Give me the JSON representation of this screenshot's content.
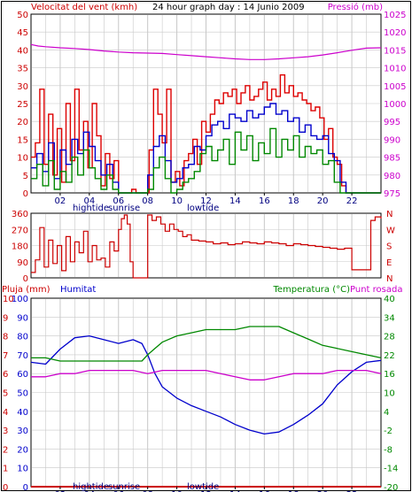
{
  "page": {
    "title": "24 hour graph day : 14 Junio 2009",
    "background": "#ffffff",
    "border_color": "#000000",
    "gridline_color": "#c8c8c8"
  },
  "chart_data": [
    {
      "type": "line",
      "id": "wind-pressure",
      "title": "24 hour graph day : 14 Junio 2009",
      "ylabel_left": "Velocitat del vent (kmh)",
      "ylabel_right": "Pressió (mb)",
      "ylim_left": [
        0,
        50
      ],
      "ylim_right": [
        975,
        1025
      ],
      "yticks_left": [
        "0",
        "5",
        "10",
        "15",
        "20",
        "25",
        "30",
        "35",
        "40",
        "45",
        "50"
      ],
      "yticks_right": [
        "975",
        "980",
        "985",
        "990",
        "995",
        "1000",
        "1005",
        "1010",
        "1015",
        "1020",
        "1025"
      ],
      "xlim": [
        0,
        24
      ],
      "xticks": [
        "02",
        "04",
        "06",
        "08",
        "10",
        "12",
        "14",
        "16",
        "18",
        "20",
        "22"
      ],
      "annotations": [
        "hightide",
        "sunrise",
        "lowtide"
      ],
      "colors": {
        "left_axis": "#cc0000",
        "right_axis": "#cc00cc",
        "gust": "#dd0000",
        "average": "#0000cc",
        "speed": "#008800",
        "pressure": "#cc00cc"
      },
      "series": [
        {
          "axis": "right",
          "color": "#cc00cc",
          "x": [
            0,
            0.5,
            1,
            2,
            3,
            4,
            5,
            6,
            7,
            8,
            9,
            10,
            11,
            12,
            13,
            14,
            15,
            16,
            17,
            18,
            19,
            20,
            21,
            22,
            23,
            24
          ],
          "values": [
            1016.5,
            1016.1,
            1015.9,
            1015.6,
            1015.4,
            1015.1,
            1014.7,
            1014.4,
            1014.2,
            1014.1,
            1014.0,
            1013.7,
            1013.4,
            1013.1,
            1012.8,
            1012.5,
            1012.3,
            1012.3,
            1012.5,
            1012.8,
            1013.1,
            1013.6,
            1014.2,
            1014.9,
            1015.5,
            1015.6
          ]
        },
        {
          "axis": "left",
          "color": "#dd0000",
          "x": [
            0,
            0.3,
            0.6,
            0.9,
            1.2,
            1.5,
            1.8,
            2.1,
            2.4,
            2.7,
            3.0,
            3.3,
            3.6,
            3.9,
            4.2,
            4.5,
            4.8,
            5.1,
            5.4,
            5.7,
            6.0,
            6.3,
            6.6,
            6.9,
            7.2,
            7.5,
            7.8,
            8.1,
            8.4,
            8.7,
            9.0,
            9.3,
            9.6,
            9.9,
            10.2,
            10.5,
            10.8,
            11.1,
            11.4,
            11.7,
            12.0,
            12.3,
            12.6,
            12.9,
            13.2,
            13.5,
            13.8,
            14.1,
            14.4,
            14.7,
            15.0,
            15.3,
            15.6,
            15.9,
            16.2,
            16.5,
            16.8,
            17.1,
            17.4,
            17.7,
            18.0,
            18.3,
            18.6,
            18.9,
            19.2,
            19.5,
            19.8,
            20.1,
            20.4,
            20.7,
            21.0,
            21.3,
            21.6,
            22.0,
            23.0,
            24.0
          ],
          "values": [
            10,
            14,
            29,
            8,
            22,
            5,
            18,
            3,
            25,
            9,
            29,
            12,
            20,
            7,
            25,
            16,
            2,
            11,
            4,
            9,
            0,
            0,
            0,
            1,
            0,
            0,
            0,
            12,
            29,
            22,
            14,
            29,
            3,
            6,
            2,
            9,
            11,
            15,
            8,
            20,
            17,
            22,
            26,
            25,
            28,
            27,
            29,
            25,
            28,
            30,
            26,
            27,
            29,
            31,
            26,
            29,
            27,
            33,
            28,
            30,
            27,
            28,
            26,
            25,
            23,
            24,
            21,
            15,
            18,
            10,
            8,
            2,
            0,
            0,
            0,
            0
          ]
        },
        {
          "axis": "left",
          "color": "#0000cc",
          "x": [
            0,
            0.4,
            0.8,
            1.2,
            1.6,
            2.0,
            2.4,
            2.8,
            3.2,
            3.6,
            4.0,
            4.4,
            4.8,
            5.2,
            5.6,
            6.0,
            6.4,
            6.8,
            7.2,
            7.6,
            8.0,
            8.4,
            8.8,
            9.2,
            9.6,
            10.0,
            10.4,
            10.8,
            11.2,
            11.6,
            12.0,
            12.4,
            12.8,
            13.2,
            13.6,
            14.0,
            14.4,
            14.8,
            15.2,
            15.6,
            16.0,
            16.4,
            16.8,
            17.2,
            17.6,
            18.0,
            18.4,
            18.8,
            19.2,
            19.6,
            20.0,
            20.4,
            20.8,
            21.2,
            21.6,
            22.0,
            23.0,
            24.0
          ],
          "values": [
            7,
            11,
            6,
            14,
            4,
            12,
            8,
            15,
            11,
            17,
            13,
            9,
            5,
            8,
            3,
            0,
            0,
            0,
            0,
            0,
            5,
            13,
            16,
            9,
            3,
            4,
            7,
            8,
            13,
            12,
            16,
            19,
            20,
            18,
            22,
            21,
            20,
            23,
            21,
            22,
            24,
            25,
            22,
            23,
            20,
            21,
            17,
            19,
            16,
            15,
            16,
            11,
            9,
            3,
            0,
            0,
            0,
            0
          ]
        },
        {
          "axis": "left",
          "color": "#008800",
          "x": [
            0,
            0.4,
            0.8,
            1.2,
            1.6,
            2.0,
            2.4,
            2.8,
            3.2,
            3.6,
            4.0,
            4.4,
            4.8,
            5.2,
            5.6,
            6.0,
            6.4,
            6.8,
            7.2,
            7.6,
            8.0,
            8.4,
            8.8,
            9.2,
            9.6,
            10.0,
            10.4,
            10.8,
            11.2,
            11.6,
            12.0,
            12.4,
            12.8,
            13.2,
            13.6,
            14.0,
            14.4,
            14.8,
            15.2,
            15.6,
            16.0,
            16.4,
            16.8,
            17.2,
            17.6,
            18.0,
            18.4,
            18.8,
            19.2,
            19.6,
            20.0,
            20.4,
            20.8,
            21.2,
            21.6,
            22.0,
            23.0,
            24.0
          ],
          "values": [
            4,
            8,
            2,
            9,
            1,
            6,
            3,
            10,
            5,
            12,
            7,
            4,
            1,
            5,
            1,
            0,
            0,
            0,
            0,
            0,
            1,
            7,
            10,
            4,
            0,
            1,
            3,
            4,
            6,
            11,
            13,
            9,
            12,
            15,
            8,
            17,
            12,
            16,
            9,
            14,
            11,
            18,
            10,
            15,
            12,
            16,
            10,
            13,
            11,
            12,
            8,
            9,
            3,
            0,
            0,
            0,
            0,
            0
          ]
        }
      ]
    },
    {
      "type": "line",
      "id": "wind-direction",
      "ylim": [
        0,
        360
      ],
      "yticks": [
        "0",
        "90",
        "180",
        "270",
        "360"
      ],
      "compass_labels": [
        "N",
        "W",
        "S",
        "E",
        "N"
      ],
      "xlim": [
        0,
        24
      ],
      "colors": {
        "axis": "#cc0000",
        "line": "#cc0000"
      },
      "series": [
        {
          "axis": "left",
          "color": "#cc0000",
          "x": [
            0,
            0.3,
            0.6,
            0.9,
            1.2,
            1.5,
            1.8,
            2.1,
            2.4,
            2.7,
            3.0,
            3.3,
            3.6,
            3.9,
            4.2,
            4.5,
            4.8,
            5.1,
            5.4,
            5.7,
            6.0,
            6.2,
            6.4,
            6.6,
            6.8,
            7.0,
            7.2,
            7.4,
            7.6,
            7.8,
            8.0,
            8.3,
            8.6,
            8.9,
            9.2,
            9.5,
            9.8,
            10.1,
            10.4,
            10.7,
            11.0,
            11.5,
            12.0,
            12.5,
            13.0,
            13.5,
            14.0,
            14.5,
            15.0,
            15.5,
            16.0,
            16.5,
            17.0,
            17.5,
            18.0,
            18.5,
            19.0,
            19.5,
            20.0,
            20.5,
            21.0,
            21.5,
            22.0,
            22.5,
            23.0,
            23.3,
            23.6,
            24.0
          ],
          "values": [
            30,
            100,
            280,
            60,
            210,
            80,
            180,
            40,
            230,
            90,
            200,
            140,
            260,
            90,
            180,
            100,
            110,
            60,
            200,
            150,
            270,
            330,
            350,
            300,
            90,
            0,
            0,
            0,
            0,
            0,
            350,
            320,
            340,
            300,
            260,
            300,
            270,
            260,
            230,
            240,
            210,
            205,
            200,
            190,
            195,
            185,
            190,
            200,
            195,
            190,
            200,
            195,
            190,
            180,
            190,
            185,
            180,
            175,
            170,
            165,
            160,
            165,
            45,
            45,
            45,
            320,
            340,
            330
          ]
        }
      ]
    },
    {
      "type": "line",
      "id": "humidity-temperature",
      "ylabel_left_1": "Pluja (mm)",
      "ylabel_left_2": "Humitat",
      "ylabel_right_1": "Temperatura (°C)",
      "ylabel_right_2": "Punt rosada",
      "ylim_rain": [
        0,
        10
      ],
      "ylim_humidity": [
        0,
        100
      ],
      "ylim_temp": [
        -20,
        40
      ],
      "yticks_rain": [
        "0",
        "1",
        "2",
        "3",
        "4",
        "5",
        "6",
        "7",
        "8",
        "9",
        "10"
      ],
      "yticks_humidity": [
        "0",
        "10",
        "20",
        "30",
        "40",
        "50",
        "60",
        "70",
        "80",
        "90",
        "100"
      ],
      "yticks_temp": [
        "-20",
        "-14",
        "-8",
        "-2",
        "4",
        "10",
        "16",
        "22",
        "28",
        "34",
        "40"
      ],
      "xlim": [
        0,
        24
      ],
      "xticks": [
        "02",
        "04",
        "06",
        "08",
        "10",
        "12",
        "14",
        "16",
        "18",
        "20",
        "22"
      ],
      "annotations": [
        "hightide",
        "sunrise",
        "lowtide"
      ],
      "colors": {
        "rain": "#cc0000",
        "humidity": "#0000cc",
        "temperature": "#008800",
        "dewpoint": "#cc00cc"
      },
      "series": [
        {
          "axis": "humidity",
          "color": "#0000cc",
          "x": [
            0,
            1,
            2,
            3,
            4,
            5,
            6,
            7,
            7.6,
            8,
            8.5,
            9,
            10,
            11,
            12,
            13,
            14,
            15,
            16,
            17,
            18,
            19,
            20,
            21,
            22,
            23,
            24
          ],
          "values": [
            66,
            65,
            73,
            79,
            80,
            78,
            76,
            78,
            76,
            70,
            60,
            53,
            47,
            43,
            40,
            37,
            33,
            30,
            28,
            29,
            33,
            38,
            44,
            54,
            61,
            66,
            67
          ]
        },
        {
          "axis": "temp",
          "color": "#008800",
          "x": [
            0,
            1,
            2,
            3,
            4,
            5,
            6,
            7,
            7.6,
            8,
            8.5,
            9,
            10,
            11,
            12,
            13,
            14,
            15,
            16,
            17,
            18,
            19,
            20,
            21,
            22,
            23,
            24
          ],
          "values": [
            21,
            21,
            20,
            20,
            20,
            20,
            20,
            20,
            20,
            22,
            24,
            26,
            28,
            29,
            30,
            30,
            30,
            31,
            31,
            31,
            29,
            27,
            25,
            24,
            23,
            22,
            21
          ]
        },
        {
          "axis": "temp",
          "color": "#cc00cc",
          "x": [
            0,
            1,
            2,
            3,
            4,
            5,
            6,
            7,
            8,
            9,
            10,
            11,
            12,
            13,
            14,
            15,
            16,
            17,
            18,
            19,
            20,
            21,
            22,
            23,
            24
          ],
          "values": [
            15,
            15,
            16,
            16,
            17,
            17,
            17,
            17,
            16,
            17,
            17,
            17,
            17,
            16,
            15,
            14,
            14,
            15,
            16,
            16,
            16,
            17,
            17,
            17,
            16
          ]
        },
        {
          "axis": "rain",
          "color": "#cc0000",
          "x": [
            0,
            24
          ],
          "values": [
            0,
            0
          ]
        }
      ]
    }
  ]
}
